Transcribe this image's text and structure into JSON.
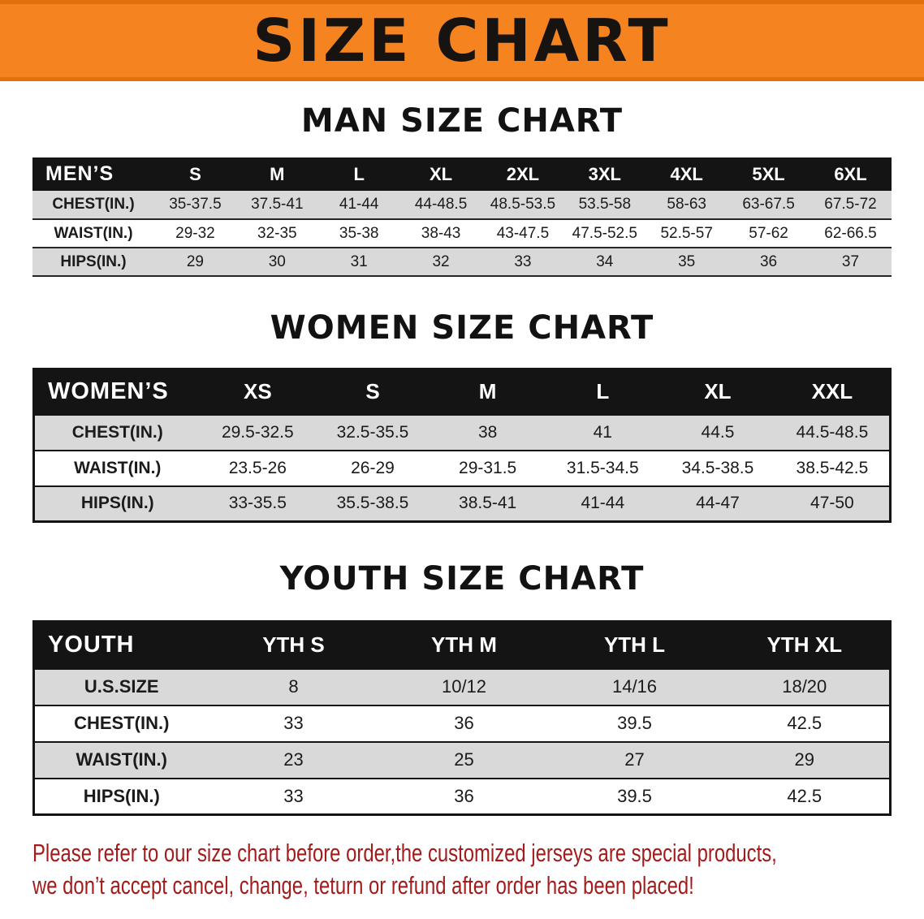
{
  "banner": {
    "title": "SIZE CHART",
    "bg_color": "#f5831f",
    "text_color": "#171310"
  },
  "chart_data": [
    {
      "type": "table",
      "title": "MAN SIZE CHART",
      "columns": [
        "MEN’S",
        "S",
        "M",
        "L",
        "XL",
        "2XL",
        "3XL",
        "4XL",
        "5XL",
        "6XL"
      ],
      "rows": [
        [
          "CHEST(IN.)",
          "35-37.5",
          "37.5-41",
          "41-44",
          "44-48.5",
          "48.5-53.5",
          "53.5-58",
          "58-63",
          "63-67.5",
          "67.5-72"
        ],
        [
          "WAIST(IN.)",
          "29-32",
          "32-35",
          "35-38",
          "38-43",
          "43-47.5",
          "47.5-52.5",
          "52.5-57",
          "57-62",
          "62-66.5"
        ],
        [
          "HIPS(IN.)",
          "29",
          "30",
          "31",
          "32",
          "33",
          "34",
          "35",
          "36",
          "37"
        ]
      ]
    },
    {
      "type": "table",
      "title": "WOMEN SIZE CHART",
      "columns": [
        "WOMEN’S",
        "XS",
        "S",
        "M",
        "L",
        "XL",
        "XXL"
      ],
      "rows": [
        [
          "CHEST(IN.)",
          "29.5-32.5",
          "32.5-35.5",
          "38",
          "41",
          "44.5",
          "44.5-48.5"
        ],
        [
          "WAIST(IN.)",
          "23.5-26",
          "26-29",
          "29-31.5",
          "31.5-34.5",
          "34.5-38.5",
          "38.5-42.5"
        ],
        [
          "HIPS(IN.)",
          "33-35.5",
          "35.5-38.5",
          "38.5-41",
          "41-44",
          "44-47",
          "47-50"
        ]
      ]
    },
    {
      "type": "table",
      "title": "YOUTH SIZE CHART",
      "columns": [
        "YOUTH",
        "YTH S",
        "YTH M",
        "YTH L",
        "YTH XL"
      ],
      "rows": [
        [
          "U.S.SIZE",
          "8",
          "10/12",
          "14/16",
          "18/20"
        ],
        [
          "CHEST(IN.)",
          "33",
          "36",
          "39.5",
          "42.5"
        ],
        [
          "WAIST(IN.)",
          "23",
          "25",
          "27",
          "29"
        ],
        [
          "HIPS(IN.)",
          "33",
          "36",
          "39.5",
          "42.5"
        ]
      ]
    }
  ],
  "footer": {
    "color": "#a21c1c",
    "line1": "Please refer to our size chart before order,the customized jerseys are special products,",
    "line2": "we don’t accept cancel, change, teturn or refund after order has been placed!"
  }
}
